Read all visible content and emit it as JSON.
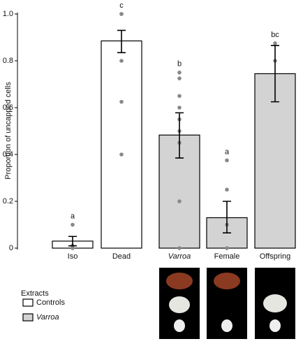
{
  "chart_data": {
    "type": "bar",
    "ylabel": "Proportion of uncapped cells",
    "categories": [
      "Iso",
      "Dead",
      "Varroa",
      "Female",
      "Offspring"
    ],
    "ylim": [
      0,
      1.0
    ],
    "yticks": [
      0,
      0.2,
      0.4,
      0.6,
      0.8,
      {
        "value": 1,
        "label": "1.0"
      }
    ],
    "legend_title": "Extracts",
    "series": [
      {
        "name": "Controls",
        "color": "#ffffff",
        "values": [
          0.03,
          0.885,
          null,
          null,
          null
        ],
        "error_low": [
          0.01,
          0.835,
          null,
          null,
          null
        ],
        "error_high": [
          0.05,
          0.93,
          null,
          null,
          null
        ]
      },
      {
        "name": "Varroa",
        "color": "#d3d3d3",
        "values": [
          null,
          null,
          0.483,
          0.13,
          0.745
        ],
        "error_low": [
          null,
          null,
          0.385,
          0.065,
          0.625
        ],
        "error_high": [
          null,
          null,
          0.578,
          0.2,
          0.865
        ]
      }
    ],
    "points": [
      [
        0.1,
        0.01,
        0.0
      ],
      [
        1.0,
        1.0,
        0.8,
        0.625,
        0.4
      ],
      [
        0.75,
        0.725,
        0.65,
        0.6,
        0.55,
        0.5,
        0.45,
        0.2,
        0.0
      ],
      [
        0.375,
        0.25,
        0.1,
        0.0
      ],
      [
        0.875,
        0.8
      ]
    ],
    "annotations": [
      "a",
      "c",
      "b",
      "a",
      "bc"
    ]
  }
}
